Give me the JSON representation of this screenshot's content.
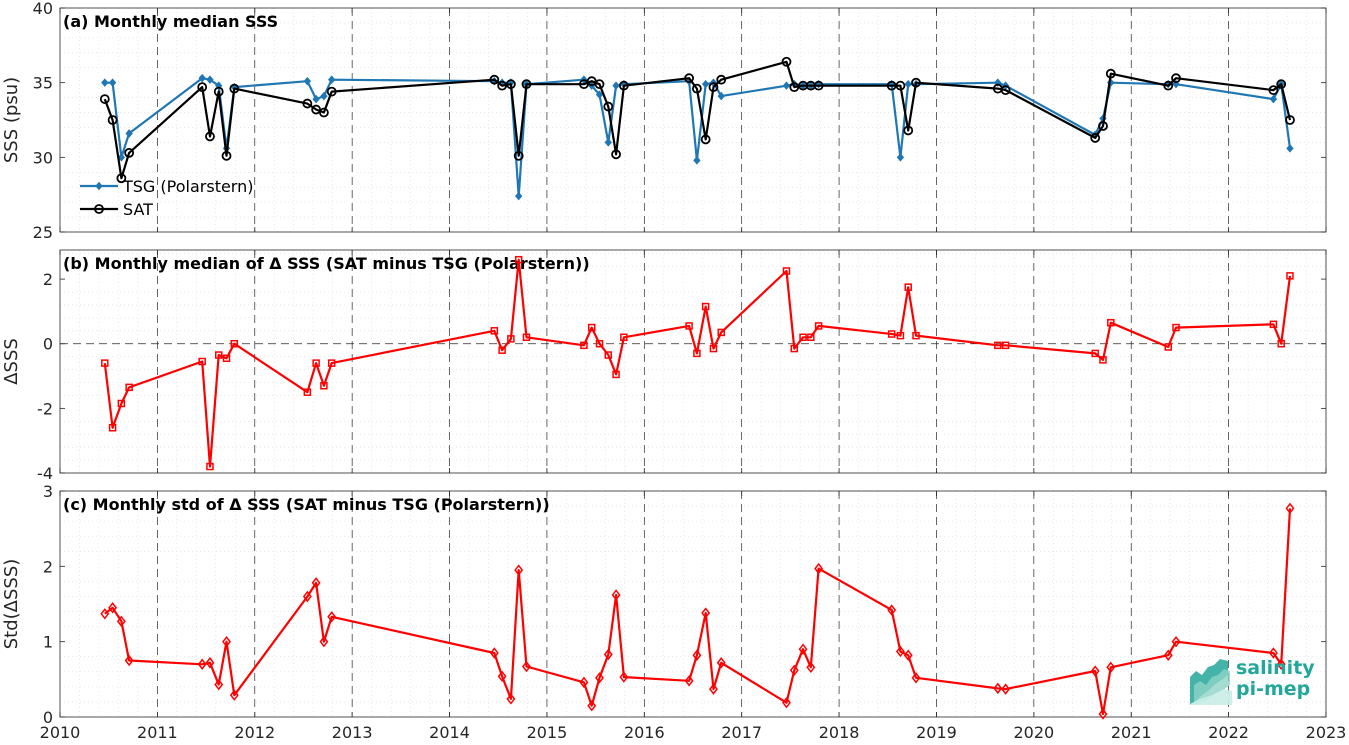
{
  "colors": {
    "tsg": "#1f77b4",
    "sat": "#000000",
    "delta": "#ff0000",
    "axis": "#262626",
    "grid": "#d9d9d9",
    "logo": "#23a79a"
  },
  "x_tick_labels": [
    "2010",
    "2011",
    "2012",
    "2013",
    "2014",
    "2015",
    "2016",
    "2017",
    "2018",
    "2019",
    "2020",
    "2021",
    "2022",
    "2023"
  ],
  "logo": {
    "line1": "salinity",
    "line2": "pi-mep"
  },
  "chart_data": [
    {
      "type": "line",
      "title": "(a) Monthly median SSS",
      "xlabel": "",
      "ylabel": "SSS (psu)",
      "xlim": [
        2010.0,
        2023.0
      ],
      "ylim": [
        25,
        40
      ],
      "yticks": [
        25,
        30,
        35,
        40
      ],
      "grid": true,
      "legend": "bottom-left",
      "series": [
        {
          "name": "TSG (Polarstern)",
          "marker": "filled-diamond",
          "x": [
            2010.46,
            2010.54,
            2010.63,
            2010.71,
            2011.46,
            2011.54,
            2011.63,
            2011.71,
            2011.79,
            2012.54,
            2012.63,
            2012.71,
            2012.79,
            2014.46,
            2014.54,
            2014.63,
            2014.71,
            2014.79,
            2015.38,
            2015.46,
            2015.54,
            2015.63,
            2015.71,
            2015.79,
            2016.46,
            2016.54,
            2016.63,
            2016.71,
            2016.79,
            2017.46,
            2017.54,
            2017.63,
            2017.71,
            2017.79,
            2018.54,
            2018.63,
            2018.71,
            2018.79,
            2019.63,
            2019.71,
            2020.63,
            2020.71,
            2020.79,
            2021.38,
            2021.46,
            2022.46,
            2022.54,
            2022.63
          ],
          "y": [
            35.0,
            35.0,
            30.0,
            31.6,
            35.3,
            35.2,
            34.8,
            30.6,
            34.7,
            35.1,
            33.9,
            34.1,
            35.2,
            35.1,
            35.0,
            35.0,
            27.4,
            34.9,
            35.2,
            34.8,
            34.2,
            31.0,
            34.8,
            34.9,
            35.1,
            29.8,
            34.9,
            35.0,
            34.1,
            34.8,
            34.9,
            34.8,
            34.8,
            34.9,
            34.9,
            30.0,
            34.9,
            34.9,
            35.0,
            34.8,
            31.5,
            32.6,
            35.0,
            34.9,
            34.9,
            33.9,
            34.9,
            30.6
          ]
        },
        {
          "name": "SAT",
          "marker": "open-circle",
          "x": [
            2010.46,
            2010.54,
            2010.63,
            2010.71,
            2011.46,
            2011.54,
            2011.63,
            2011.71,
            2011.79,
            2012.54,
            2012.63,
            2012.71,
            2012.79,
            2014.46,
            2014.54,
            2014.63,
            2014.71,
            2014.79,
            2015.38,
            2015.46,
            2015.54,
            2015.63,
            2015.71,
            2015.79,
            2016.46,
            2016.54,
            2016.63,
            2016.71,
            2016.79,
            2017.46,
            2017.54,
            2017.63,
            2017.71,
            2017.79,
            2018.54,
            2018.63,
            2018.71,
            2018.79,
            2019.63,
            2019.71,
            2020.63,
            2020.71,
            2020.79,
            2021.38,
            2021.46,
            2022.46,
            2022.54,
            2022.63
          ],
          "y": [
            33.9,
            32.5,
            28.6,
            30.3,
            34.7,
            31.4,
            34.4,
            30.1,
            34.6,
            33.6,
            33.2,
            33.0,
            34.4,
            35.2,
            34.8,
            34.9,
            30.1,
            34.9,
            34.9,
            35.1,
            34.9,
            33.4,
            30.2,
            34.8,
            35.3,
            34.6,
            31.2,
            34.7,
            35.2,
            36.4,
            34.7,
            34.8,
            34.8,
            34.8,
            34.8,
            34.8,
            31.8,
            35.0,
            34.6,
            34.5,
            31.3,
            32.1,
            35.6,
            34.8,
            35.3,
            34.5,
            34.9,
            32.5
          ]
        }
      ]
    },
    {
      "type": "line",
      "title": "(b) Monthly median of Δ SSS (SAT minus TSG (Polarstern))",
      "xlabel": "",
      "ylabel": "ΔSSS",
      "xlim": [
        2010.0,
        2023.0
      ],
      "ylim": [
        -4,
        2.9
      ],
      "yticks": [
        -4,
        -2,
        0,
        2
      ],
      "grid": true,
      "reference_line": 0,
      "series": [
        {
          "marker": "open-square",
          "x": [
            2010.46,
            2010.54,
            2010.63,
            2010.71,
            2011.46,
            2011.54,
            2011.63,
            2011.71,
            2011.79,
            2012.54,
            2012.63,
            2012.71,
            2012.79,
            2014.46,
            2014.54,
            2014.63,
            2014.71,
            2014.79,
            2015.38,
            2015.46,
            2015.54,
            2015.63,
            2015.71,
            2015.79,
            2016.46,
            2016.54,
            2016.63,
            2016.71,
            2016.79,
            2017.46,
            2017.54,
            2017.63,
            2017.71,
            2017.79,
            2018.54,
            2018.63,
            2018.71,
            2018.79,
            2019.63,
            2019.71,
            2020.63,
            2020.71,
            2020.79,
            2021.38,
            2021.46,
            2022.46,
            2022.54,
            2022.63
          ],
          "y": [
            -0.6,
            -2.6,
            -1.85,
            -1.35,
            -0.55,
            -3.8,
            -0.35,
            -0.45,
            0.0,
            -1.5,
            -0.6,
            -1.3,
            -0.6,
            0.4,
            -0.2,
            0.15,
            2.6,
            0.2,
            -0.05,
            0.5,
            0.0,
            -0.35,
            -0.95,
            0.2,
            0.55,
            -0.3,
            1.15,
            -0.15,
            0.35,
            2.25,
            -0.15,
            0.2,
            0.2,
            0.55,
            0.3,
            0.25,
            1.75,
            0.25,
            -0.05,
            -0.05,
            -0.3,
            -0.5,
            0.65,
            -0.1,
            0.5,
            0.6,
            0.0,
            2.1
          ]
        }
      ]
    },
    {
      "type": "line",
      "title": "(c) Monthly std of Δ SSS (SAT minus TSG (Polarstern))",
      "xlabel": "",
      "ylabel": "Std(ΔSSS)",
      "xlim": [
        2010.0,
        2023.0
      ],
      "ylim": [
        0,
        3
      ],
      "yticks": [
        0,
        1,
        2,
        3
      ],
      "grid": true,
      "series": [
        {
          "marker": "open-diamond",
          "x": [
            2010.46,
            2010.54,
            2010.63,
            2010.71,
            2011.46,
            2011.54,
            2011.63,
            2011.71,
            2011.79,
            2012.54,
            2012.63,
            2012.71,
            2012.79,
            2014.46,
            2014.54,
            2014.63,
            2014.71,
            2014.79,
            2015.38,
            2015.46,
            2015.54,
            2015.63,
            2015.71,
            2015.79,
            2016.46,
            2016.54,
            2016.63,
            2016.71,
            2016.79,
            2017.46,
            2017.54,
            2017.63,
            2017.71,
            2017.79,
            2018.54,
            2018.63,
            2018.71,
            2018.79,
            2019.63,
            2019.71,
            2020.63,
            2020.71,
            2020.79,
            2021.38,
            2021.46,
            2022.46,
            2022.54,
            2022.63
          ],
          "y": [
            1.37,
            1.45,
            1.27,
            0.75,
            0.7,
            0.72,
            0.43,
            1.0,
            0.29,
            1.6,
            1.78,
            1.0,
            1.33,
            0.85,
            0.54,
            0.24,
            1.95,
            0.67,
            0.46,
            0.15,
            0.52,
            0.83,
            1.62,
            0.53,
            0.48,
            0.82,
            1.38,
            0.37,
            0.72,
            0.19,
            0.62,
            0.9,
            0.66,
            1.97,
            1.42,
            0.87,
            0.82,
            0.52,
            0.38,
            0.37,
            0.61,
            0.04,
            0.66,
            0.82,
            1.0,
            0.85,
            0.7,
            2.77
          ]
        }
      ]
    }
  ]
}
